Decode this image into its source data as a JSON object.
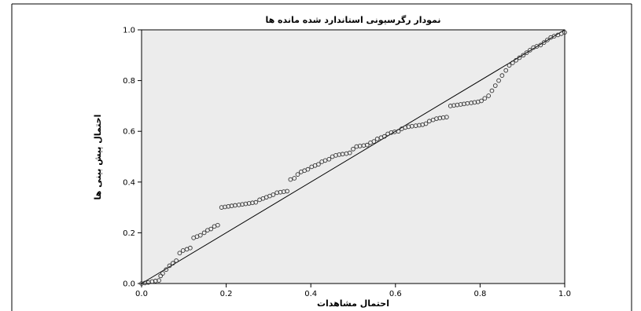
{
  "chart_data": {
    "type": "scatter",
    "title": "نمودار رگرسیونی استاندارد شده مانده ها",
    "xlabel": "احتمال مشاهدات",
    "ylabel": "احتمال پیش بینی ها",
    "xlim": [
      0,
      1
    ],
    "ylim": [
      0,
      1
    ],
    "x_ticks": [
      "0.0",
      "0.2",
      "0.4",
      "0.6",
      "0.8",
      "1.0"
    ],
    "y_ticks": [
      "0.0",
      "0.2",
      "0.4",
      "0.6",
      "0.8",
      "1.0"
    ],
    "reference_line": [
      [
        0,
        0
      ],
      [
        1,
        1
      ]
    ],
    "grid": false,
    "colors": {
      "plot_background": "#ececec",
      "marker": "#333333",
      "line": "#000000"
    },
    "points": [
      [
        0.0,
        0.0
      ],
      [
        0.008,
        0.002
      ],
      [
        0.016,
        0.004
      ],
      [
        0.025,
        0.008
      ],
      [
        0.033,
        0.01
      ],
      [
        0.041,
        0.012
      ],
      [
        0.045,
        0.03
      ],
      [
        0.05,
        0.04
      ],
      [
        0.058,
        0.055
      ],
      [
        0.066,
        0.07
      ],
      [
        0.074,
        0.08
      ],
      [
        0.082,
        0.09
      ],
      [
        0.09,
        0.12
      ],
      [
        0.098,
        0.13
      ],
      [
        0.107,
        0.135
      ],
      [
        0.115,
        0.14
      ],
      [
        0.123,
        0.18
      ],
      [
        0.131,
        0.185
      ],
      [
        0.139,
        0.19
      ],
      [
        0.148,
        0.2
      ],
      [
        0.156,
        0.21
      ],
      [
        0.164,
        0.215
      ],
      [
        0.172,
        0.225
      ],
      [
        0.18,
        0.23
      ],
      [
        0.189,
        0.3
      ],
      [
        0.197,
        0.302
      ],
      [
        0.205,
        0.304
      ],
      [
        0.213,
        0.306
      ],
      [
        0.221,
        0.308
      ],
      [
        0.23,
        0.31
      ],
      [
        0.238,
        0.312
      ],
      [
        0.246,
        0.314
      ],
      [
        0.254,
        0.316
      ],
      [
        0.262,
        0.318
      ],
      [
        0.27,
        0.32
      ],
      [
        0.279,
        0.33
      ],
      [
        0.287,
        0.335
      ],
      [
        0.295,
        0.34
      ],
      [
        0.303,
        0.345
      ],
      [
        0.311,
        0.35
      ],
      [
        0.32,
        0.358
      ],
      [
        0.328,
        0.36
      ],
      [
        0.336,
        0.362
      ],
      [
        0.344,
        0.364
      ],
      [
        0.352,
        0.41
      ],
      [
        0.361,
        0.415
      ],
      [
        0.369,
        0.43
      ],
      [
        0.377,
        0.44
      ],
      [
        0.385,
        0.445
      ],
      [
        0.393,
        0.45
      ],
      [
        0.402,
        0.46
      ],
      [
        0.41,
        0.465
      ],
      [
        0.418,
        0.47
      ],
      [
        0.426,
        0.48
      ],
      [
        0.434,
        0.485
      ],
      [
        0.443,
        0.49
      ],
      [
        0.451,
        0.5
      ],
      [
        0.459,
        0.505
      ],
      [
        0.467,
        0.508
      ],
      [
        0.475,
        0.51
      ],
      [
        0.484,
        0.512
      ],
      [
        0.492,
        0.515
      ],
      [
        0.5,
        0.53
      ],
      [
        0.508,
        0.54
      ],
      [
        0.516,
        0.542
      ],
      [
        0.525,
        0.544
      ],
      [
        0.533,
        0.546
      ],
      [
        0.541,
        0.555
      ],
      [
        0.549,
        0.56
      ],
      [
        0.557,
        0.57
      ],
      [
        0.566,
        0.575
      ],
      [
        0.574,
        0.58
      ],
      [
        0.582,
        0.59
      ],
      [
        0.59,
        0.595
      ],
      [
        0.598,
        0.598
      ],
      [
        0.607,
        0.6
      ],
      [
        0.615,
        0.61
      ],
      [
        0.623,
        0.615
      ],
      [
        0.631,
        0.618
      ],
      [
        0.639,
        0.62
      ],
      [
        0.648,
        0.622
      ],
      [
        0.656,
        0.624
      ],
      [
        0.664,
        0.626
      ],
      [
        0.672,
        0.63
      ],
      [
        0.68,
        0.64
      ],
      [
        0.689,
        0.645
      ],
      [
        0.697,
        0.65
      ],
      [
        0.705,
        0.652
      ],
      [
        0.713,
        0.654
      ],
      [
        0.721,
        0.656
      ],
      [
        0.73,
        0.7
      ],
      [
        0.738,
        0.702
      ],
      [
        0.746,
        0.704
      ],
      [
        0.754,
        0.706
      ],
      [
        0.762,
        0.708
      ],
      [
        0.77,
        0.71
      ],
      [
        0.779,
        0.712
      ],
      [
        0.787,
        0.714
      ],
      [
        0.795,
        0.716
      ],
      [
        0.803,
        0.72
      ],
      [
        0.811,
        0.73
      ],
      [
        0.82,
        0.74
      ],
      [
        0.828,
        0.76
      ],
      [
        0.836,
        0.78
      ],
      [
        0.844,
        0.8
      ],
      [
        0.852,
        0.82
      ],
      [
        0.861,
        0.84
      ],
      [
        0.869,
        0.86
      ],
      [
        0.877,
        0.87
      ],
      [
        0.885,
        0.88
      ],
      [
        0.893,
        0.89
      ],
      [
        0.902,
        0.9
      ],
      [
        0.91,
        0.91
      ],
      [
        0.918,
        0.92
      ],
      [
        0.926,
        0.93
      ],
      [
        0.934,
        0.935
      ],
      [
        0.943,
        0.94
      ],
      [
        0.951,
        0.95
      ],
      [
        0.959,
        0.96
      ],
      [
        0.967,
        0.97
      ],
      [
        0.975,
        0.975
      ],
      [
        0.984,
        0.98
      ],
      [
        0.992,
        0.985
      ],
      [
        1.0,
        0.99
      ]
    ]
  }
}
